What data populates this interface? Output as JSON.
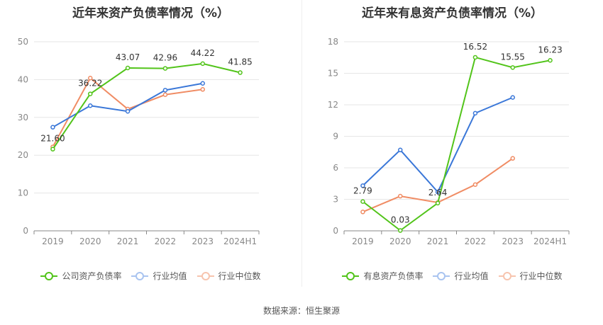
{
  "footer": "数据来源：恒生聚源",
  "chart_data": [
    {
      "type": "line",
      "title": "近年来资产负债率情况（%）",
      "categories": [
        "2019",
        "2020",
        "2021",
        "2022",
        "2023",
        "2024H1"
      ],
      "ylim": [
        0,
        50
      ],
      "yticks": [
        "0",
        "10",
        "20",
        "30",
        "40",
        "50"
      ],
      "grid": true,
      "legend_position": "bottom",
      "series": [
        {
          "name": "公司资产负债率",
          "color": "#52c41a",
          "values": [
            21.6,
            36.22,
            43.07,
            42.96,
            44.22,
            41.85
          ],
          "labels": [
            "21.60",
            "36.22",
            "43.07",
            "42.96",
            "44.22",
            "41.85"
          ]
        },
        {
          "name": "行业均值",
          "color": "#3a77d8",
          "values": [
            27.4,
            33.1,
            31.6,
            37.2,
            39.0,
            null
          ]
        },
        {
          "name": "行业中位数",
          "color": "#f08c64",
          "values": [
            22.2,
            40.4,
            32.2,
            36.0,
            37.4,
            null
          ]
        }
      ]
    },
    {
      "type": "line",
      "title": "近年来有息资产负债率情况（%）",
      "categories": [
        "2019",
        "2020",
        "2021",
        "2022",
        "2023",
        "2024H1"
      ],
      "ylim": [
        0,
        18
      ],
      "yticks": [
        "0",
        "3",
        "6",
        "9",
        "12",
        "15",
        "18"
      ],
      "grid": true,
      "legend_position": "bottom",
      "series": [
        {
          "name": "有息资产负债率",
          "color": "#52c41a",
          "values": [
            2.79,
            0.03,
            2.64,
            16.52,
            15.55,
            16.23
          ],
          "labels": [
            "2.79",
            "0.03",
            "2.64",
            "16.52",
            "15.55",
            "16.23"
          ]
        },
        {
          "name": "行业均值",
          "color": "#3a77d8",
          "values": [
            4.3,
            7.7,
            3.7,
            11.2,
            12.7,
            null
          ]
        },
        {
          "name": "行业中位数",
          "color": "#f08c64",
          "values": [
            1.8,
            3.3,
            2.7,
            4.4,
            6.9,
            null
          ]
        }
      ]
    }
  ]
}
